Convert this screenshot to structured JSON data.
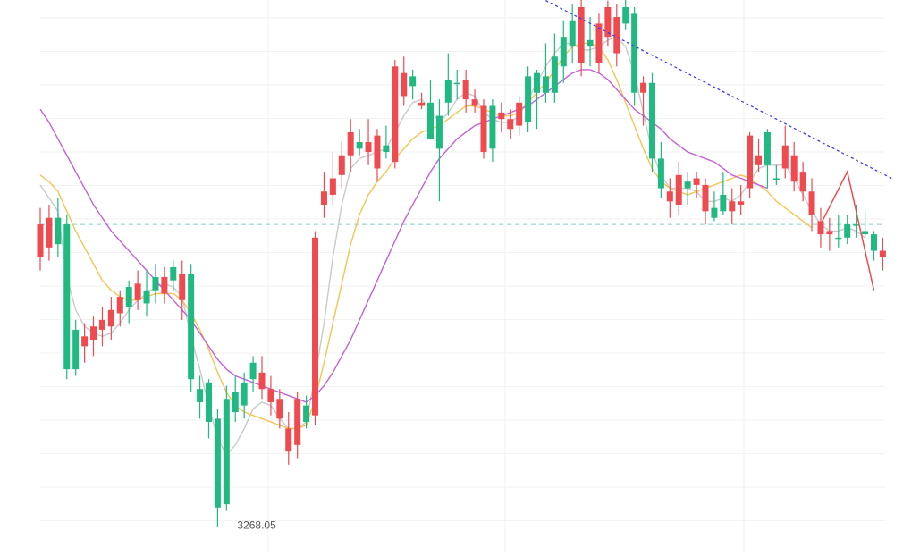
{
  "chart_data": {
    "type": "candlestick",
    "grid": true,
    "annotations": {
      "low_label": "3268.05"
    },
    "colors": {
      "up": "#1fb981",
      "down": "#ef4a4f",
      "ma_fast": "#c9c9c9",
      "ma_mid": "#f5c453",
      "ma_slow": "#c560d8",
      "trendline": "#3a3ff0",
      "reference_line": "#52b6b8",
      "projection": "#ef4a4f"
    },
    "y_range": [
      3262,
      3426
    ],
    "candles": [
      [
        3360.0,
        3350.0,
        3365.0,
        3346.0
      ],
      [
        3362.0,
        3353.0,
        3366.0,
        3349.0
      ],
      [
        3354.0,
        3362.0,
        3368.0,
        3350.0
      ],
      [
        3316.0,
        3360.0,
        3363.0,
        3313.0
      ],
      [
        3316.0,
        3328.0,
        3331.0,
        3314.0
      ],
      [
        3326.0,
        3323.0,
        3330.0,
        3318.0
      ],
      [
        3329.0,
        3325.0,
        3332.0,
        3320.0
      ],
      [
        3331.0,
        3328.0,
        3335.0,
        3323.0
      ],
      [
        3334.0,
        3329.0,
        3338.0,
        3325.0
      ],
      [
        3338.0,
        3333.0,
        3340.0,
        3329.0
      ],
      [
        3335.0,
        3341.0,
        3343.0,
        3330.0
      ],
      [
        3342.0,
        3337.0,
        3346.0,
        3334.0
      ],
      [
        3336.0,
        3340.0,
        3346.0,
        3332.0
      ],
      [
        3340.0,
        3344.0,
        3348.0,
        3336.0
      ],
      [
        3344.0,
        3339.0,
        3347.0,
        3336.0
      ],
      [
        3343.0,
        3347.0,
        3349.0,
        3340.0
      ],
      [
        3345.0,
        3337.0,
        3349.0,
        3331.0
      ],
      [
        3313.0,
        3345.0,
        3348.0,
        3309.0
      ],
      [
        3306.0,
        3310.0,
        3314.0,
        3301.0
      ],
      [
        3300.0,
        3312.0,
        3313.0,
        3295.0
      ],
      [
        3274.0,
        3301.0,
        3304.0,
        3268.05
      ],
      [
        3275.0,
        3307.0,
        3311.0,
        3273.0
      ],
      [
        3303.0,
        3309.0,
        3314.0,
        3300.0
      ],
      [
        3305.0,
        3312.0,
        3315.0,
        3301.0
      ],
      [
        3313.0,
        3318.0,
        3320.0,
        3309.0
      ],
      [
        3315.0,
        3310.0,
        3320.0,
        3307.0
      ],
      [
        3310.0,
        3306.0,
        3314.0,
        3302.0
      ],
      [
        3307.0,
        3301.0,
        3310.0,
        3298.0
      ],
      [
        3298.0,
        3291.0,
        3303.0,
        3287.0
      ],
      [
        3307.0,
        3293.0,
        3309.0,
        3289.0
      ],
      [
        3300.0,
        3305.0,
        3308.0,
        3298.0
      ],
      [
        3356.0,
        3302.0,
        3358.0,
        3299.0
      ],
      [
        3370.0,
        3366.0,
        3376.0,
        3362.0
      ],
      [
        3374.0,
        3369.0,
        3382.0,
        3366.0
      ],
      [
        3381.0,
        3375.0,
        3385.0,
        3371.0
      ],
      [
        3388.0,
        3381.0,
        3392.0,
        3376.0
      ],
      [
        3383.0,
        3385.0,
        3389.0,
        3381.0
      ],
      [
        3385.0,
        3382.0,
        3392.0,
        3378.0
      ],
      [
        3387.0,
        3377.0,
        3389.0,
        3373.0
      ],
      [
        3382.0,
        3384.0,
        3390.0,
        3380.0
      ],
      [
        3408.0,
        3379.0,
        3410.0,
        3377.0
      ],
      [
        3406.0,
        3399.0,
        3411.0,
        3396.0
      ],
      [
        3402.0,
        3405.0,
        3407.0,
        3398.0
      ],
      [
        3397.0,
        3396.0,
        3400.0,
        3395.0
      ],
      [
        3386.0,
        3397.0,
        3404.0,
        3389.0
      ],
      [
        3383.0,
        3393.0,
        3398.0,
        3367.0
      ],
      [
        3397.0,
        3404.0,
        3412.0,
        3393.0
      ],
      [
        3403.0,
        3403.0,
        3407.0,
        3398.0
      ],
      [
        3404.0,
        3398.0,
        3407.0,
        3394.0
      ],
      [
        3398.0,
        3396.0,
        3401.0,
        3394.0
      ],
      [
        3396.0,
        3382.0,
        3398.0,
        3380.0
      ],
      [
        3383.0,
        3396.0,
        3398.0,
        3379.0
      ],
      [
        3394.0,
        3392.0,
        3397.0,
        3388.0
      ],
      [
        3392.0,
        3389.0,
        3395.0,
        3386.0
      ],
      [
        3397.0,
        3390.0,
        3399.0,
        3387.0
      ],
      [
        3391.0,
        3405.0,
        3408.0,
        3388.0
      ],
      [
        3400.0,
        3406.0,
        3407.0,
        3389.0
      ],
      [
        3400.0,
        3405.0,
        3415.0,
        3397.0
      ],
      [
        3400.0,
        3411.0,
        3418.0,
        3397.0
      ],
      [
        3408.0,
        3417.0,
        3422.0,
        3403.0
      ],
      [
        3414.0,
        3422.0,
        3427.0,
        3409.0
      ],
      [
        3426.0,
        3409.0,
        3430.0,
        3405.0
      ],
      [
        3414.0,
        3416.0,
        3423.0,
        3408.0
      ],
      [
        3421.0,
        3409.0,
        3424.0,
        3406.0
      ],
      [
        3426.0,
        3417.0,
        3428.0,
        3414.0
      ],
      [
        3423.0,
        3412.0,
        3427.0,
        3408.0
      ],
      [
        3421.0,
        3426.0,
        3431.0,
        3419.0
      ],
      [
        3400.0,
        3424.0,
        3426.0,
        3396.0
      ],
      [
        3403.0,
        3400.0,
        3405.0,
        3390.0
      ],
      [
        3380.0,
        3403.0,
        3406.0,
        3376.0
      ],
      [
        3371.0,
        3380.0,
        3385.0,
        3368.0
      ],
      [
        3370.0,
        3367.0,
        3374.0,
        3362.0
      ],
      [
        3375.0,
        3366.0,
        3379.0,
        3363.0
      ],
      [
        3371.0,
        3373.0,
        3376.0,
        3366.0
      ],
      [
        3374.0,
        3372.0,
        3376.0,
        3368.0
      ],
      [
        3372.0,
        3364.0,
        3374.0,
        3360.0
      ],
      [
        3362.0,
        3365.0,
        3370.0,
        3361.0
      ],
      [
        3364.0,
        3369.0,
        3376.0,
        3363.0
      ],
      [
        3367.0,
        3364.0,
        3371.0,
        3360.0
      ],
      [
        3367.0,
        3366.0,
        3372.0,
        3363.0
      ],
      [
        3387.0,
        3371.0,
        3388.0,
        3368.0
      ],
      [
        3381.0,
        3378.0,
        3386.0,
        3376.0
      ],
      [
        3378.0,
        3388.0,
        3389.0,
        3371.0
      ],
      [
        3374.0,
        3374.0,
        3378.0,
        3372.0
      ],
      [
        3384.0,
        3377.0,
        3390.0,
        3374.0
      ],
      [
        3381.0,
        3373.0,
        3385.0,
        3370.0
      ],
      [
        3376.0,
        3370.0,
        3379.0,
        3367.0
      ],
      [
        3370.0,
        3363.0,
        3374.0,
        3358.0
      ],
      [
        3361.0,
        3357.0,
        3365.0,
        3353.0
      ],
      [
        3358.0,
        3357.0,
        3362.0,
        3352.0
      ],
      [
        3356.0,
        3356.0,
        3363.0,
        3353.0
      ],
      [
        3356.0,
        3360.0,
        3363.0,
        3354.0
      ],
      [
        3360.0,
        3360.0,
        3366.0,
        3356.0
      ],
      [
        3357.0,
        3358.0,
        3364.0,
        3356.0
      ],
      [
        3352.0,
        3357.0,
        3358.0,
        3349.0
      ],
      [
        3352.0,
        3350.0,
        3356.0,
        3346.0
      ]
    ],
    "moving_averages": [
      {
        "key": "ma_fast",
        "values": [
          3372.0,
          3368.0,
          3364.0,
          3344.0,
          3334.0,
          3329.0,
          3327.0,
          3326.0,
          3327.0,
          3330.0,
          3334.0,
          3337.0,
          3339.0,
          3341.0,
          3342.0,
          3341.0,
          3338.0,
          3326.0,
          3316.0,
          3305.0,
          3295.0,
          3290.0,
          3293.0,
          3298.0,
          3304.0,
          3306.0,
          3305.0,
          3301.0,
          3298.0,
          3298.0,
          3300.0,
          3314.0,
          3330.0,
          3350.0,
          3366.0,
          3377.0,
          3380.0,
          3381.0,
          3382.0,
          3383.0,
          3388.0,
          3393.0,
          3397.0,
          3398.0,
          3395.0,
          3391.0,
          3394.0,
          3398.0,
          3400.0,
          3399.0,
          3394.0,
          3392.0,
          3391.0,
          3391.0,
          3393.0,
          3398.0,
          3403.0,
          3408.0,
          3412.0,
          3415.0,
          3415.0,
          3413.0,
          3413.0,
          3414.0,
          3416.0,
          3417.0,
          3414.0,
          3406.0,
          3394.0,
          3382.0,
          3375.0,
          3371.0,
          3371.0,
          3371.0,
          3370.0,
          3367.0,
          3367.0,
          3368.0,
          3367.0,
          3369.0,
          3373.0,
          3377.0,
          3378.0,
          3378.0,
          3378.0,
          3374.0,
          3369.0,
          3364.0,
          3360.0,
          3358.0,
          3358.0,
          3359.0,
          3358.0,
          3356.0
        ]
      },
      {
        "key": "ma_mid",
        "values": [
          3375.0,
          3373.0,
          3370.0,
          3364.0,
          3358.0,
          3353.0,
          3348.0,
          3343.0,
          3340.0,
          3338.0,
          3337.0,
          3337.0,
          3338.0,
          3339.0,
          3339.0,
          3339.0,
          3337.0,
          3333.0,
          3328.0,
          3322.0,
          3315.0,
          3309.0,
          3305.0,
          3303.0,
          3302.0,
          3301.0,
          3300.0,
          3299.0,
          3298.0,
          3298.0,
          3299.0,
          3307.0,
          3318.0,
          3330.0,
          3342.0,
          3354.0,
          3363.0,
          3369.0,
          3373.0,
          3376.0,
          3380.0,
          3383.0,
          3386.0,
          3388.0,
          3389.0,
          3390.0,
          3392.0,
          3394.0,
          3396.0,
          3396.0,
          3395.0,
          3394.0,
          3393.0,
          3393.0,
          3394.0,
          3397.0,
          3400.0,
          3403.0,
          3407.0,
          3411.0,
          3414.0,
          3415.0,
          3415.0,
          3414.0,
          3410.0,
          3404.0,
          3397.0,
          3390.0,
          3383.0,
          3377.0,
          3373.0,
          3371.0,
          3370.0,
          3369.0,
          3370.0,
          3371.0,
          3372.0,
          3373.0,
          3374.0,
          3375.0,
          3374.0,
          3372.0,
          3370.0,
          3367.0,
          3365.0,
          3363.0,
          3361.0,
          3359.0
        ]
      },
      {
        "key": "ma_slow",
        "values": [
          3395.0,
          3391.0,
          3386.0,
          3381.0,
          3376.0,
          3371.0,
          3366.0,
          3362.0,
          3358.0,
          3355.0,
          3352.0,
          3349.0,
          3346.0,
          3343.0,
          3340.0,
          3337.0,
          3334.0,
          3331.0,
          3327.0,
          3323.0,
          3319.0,
          3316.0,
          3314.0,
          3313.0,
          3312.0,
          3311.0,
          3310.0,
          3309.0,
          3308.0,
          3307.0,
          3306.0,
          3308.0,
          3311.0,
          3315.0,
          3320.0,
          3325.0,
          3331.0,
          3337.0,
          3343.0,
          3349.0,
          3355.0,
          3361.0,
          3366.0,
          3371.0,
          3376.0,
          3380.0,
          3383.0,
          3386.0,
          3388.0,
          3390.0,
          3391.0,
          3392.0,
          3393.0,
          3394.0,
          3395.0,
          3396.0,
          3398.0,
          3400.0,
          3402.0,
          3404.0,
          3406.0,
          3407.0,
          3407.0,
          3406.0,
          3404.0,
          3401.0,
          3398.0,
          3395.0,
          3393.0,
          3391.0,
          3389.0,
          3386.0,
          3384.0,
          3382.0,
          3381.0,
          3380.0,
          3379.0,
          3377.0,
          3375.0,
          3374.0,
          3373.0,
          3372.0,
          3371.0
        ]
      }
    ],
    "trendline": {
      "from": [
        57,
        3428
      ],
      "to": [
        96,
        3374
      ]
    },
    "reference_price": 3360,
    "projection": [
      [
        88,
        3360
      ],
      [
        91,
        3376
      ],
      [
        94,
        3340
      ]
    ]
  }
}
